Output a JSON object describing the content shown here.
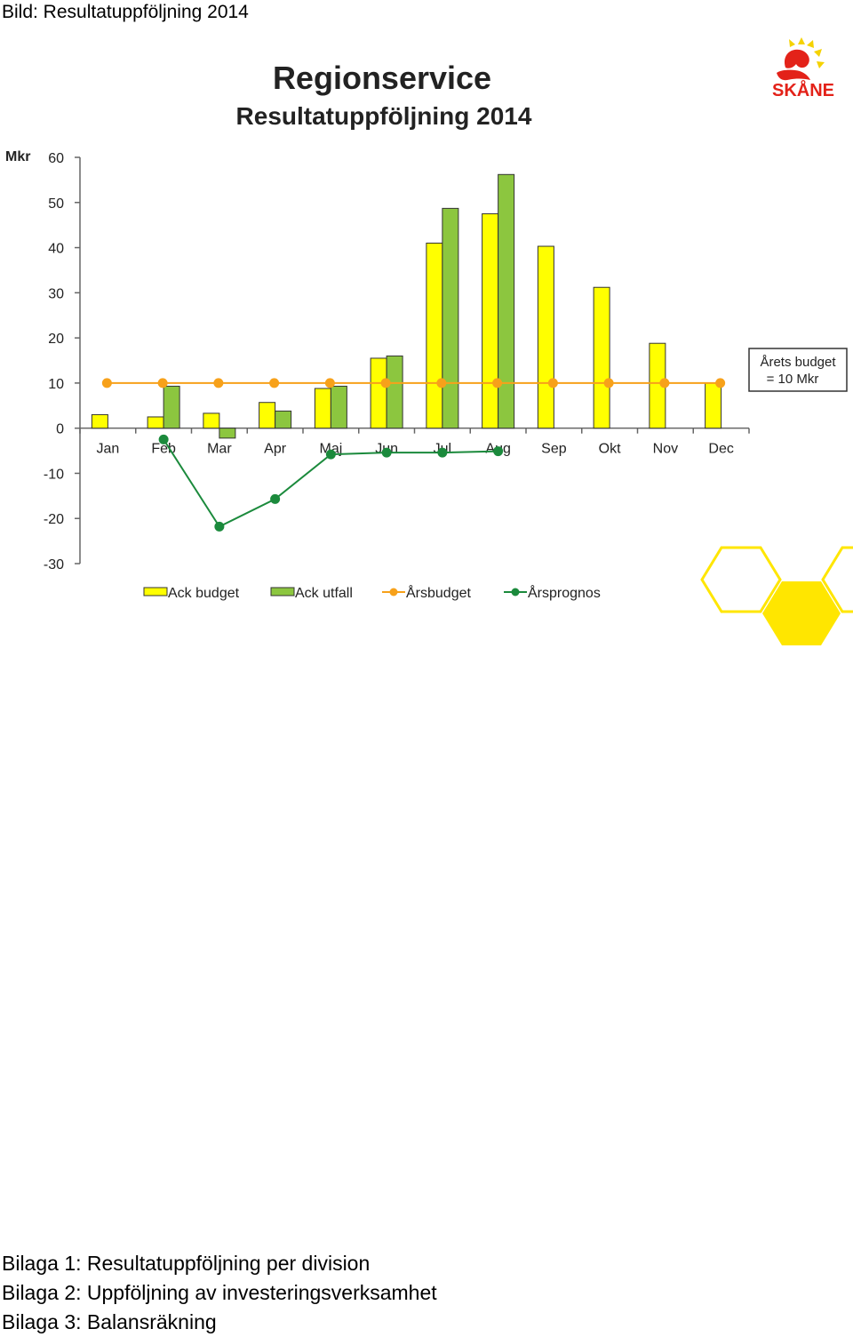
{
  "document": {
    "caption": "Bild: Resultatuppföljning 2014",
    "appendices": [
      "Bilaga 1: Resultatuppföljning per division",
      "Bilaga 2: Uppföljning av investeringsverksamhet",
      "Bilaga 3: Balansräkning"
    ]
  },
  "logo": {
    "icon": "region-skane-griffin-icon",
    "text": "SKÅNE",
    "color": "#E32219",
    "accent": "#F5D200"
  },
  "decoration": {
    "icon": "hexagon-pattern-icon",
    "color": "#FFE600"
  },
  "chart_data": {
    "type": "bar",
    "title": "Regionservice",
    "subtitle": "Resultatuppföljning 2014",
    "ylabel": "Mkr",
    "xlabel": "",
    "ylim": [
      -30,
      60
    ],
    "yticks": [
      60,
      50,
      40,
      30,
      20,
      10,
      0,
      -10,
      -20,
      -30
    ],
    "grid": false,
    "legend_position": "bottom",
    "categories": [
      "Jan",
      "Feb",
      "Mar",
      "Apr",
      "Maj",
      "Jun",
      "Jul",
      "Aug",
      "Sep",
      "Okt",
      "Nov",
      "Dec"
    ],
    "series": [
      {
        "name": "Ack budget",
        "kind": "bar",
        "color": "#FFFF00",
        "values": [
          3,
          2.5,
          3.3,
          5.7,
          8.8,
          15.5,
          41,
          47.5,
          40.3,
          31.2,
          18.8,
          10
        ]
      },
      {
        "name": "Ack utfall",
        "kind": "bar",
        "color": "#8CC63F",
        "values": [
          null,
          9.3,
          -2.2,
          3.8,
          9.3,
          16,
          48.7,
          56.2,
          null,
          null,
          null,
          null
        ]
      },
      {
        "name": "Årsbudget",
        "kind": "line",
        "color": "#F7A11A",
        "values": [
          10,
          10,
          10,
          10,
          10,
          10,
          10,
          10,
          10,
          10,
          10,
          10
        ]
      },
      {
        "name": "Årsprognos",
        "kind": "line",
        "color": "#1B8A3C",
        "values": [
          null,
          -2.5,
          -21.8,
          -15.7,
          -5.8,
          -5.4,
          -5.4,
          -5.1,
          null,
          null,
          null,
          null
        ]
      }
    ],
    "annotations": [
      {
        "lines": [
          "Årets budget",
          "= 10 Mkr"
        ]
      }
    ]
  }
}
